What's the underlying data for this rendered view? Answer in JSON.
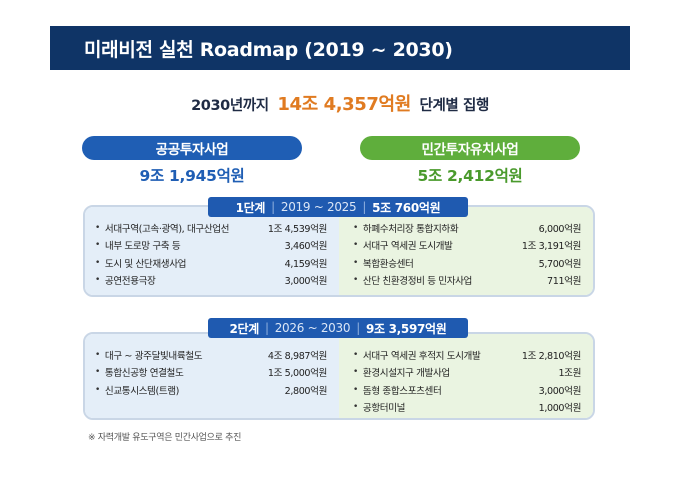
{
  "title": "미래비전 실천 Roadmap (2019 ~ 2030)",
  "total": {
    "prefix": "2030년까지",
    "amount": "14조 4,357억원",
    "suffix": "단계별 집행"
  },
  "public": {
    "label": "공공투자사업",
    "amount": "9조 1,945억원"
  },
  "private": {
    "label": "민간투자유치사업",
    "amount": "5조 2,412억원"
  },
  "stage1": {
    "name": "1단계",
    "period": "2019 ~ 2025",
    "amount": "5조 760억원",
    "public_items": [
      {
        "name": "서대구역(고속·광역), 대구산업선",
        "value": "1조 4,539억원"
      },
      {
        "name": "내부 도로망 구축 등",
        "value": "3,460억원"
      },
      {
        "name": "도시 및 산단재생사업",
        "value": "4,159억원"
      },
      {
        "name": "공연전용극장",
        "value": "3,000억원"
      }
    ],
    "private_items": [
      {
        "name": "하폐수처리장 통합지하화",
        "value": "6,000억원"
      },
      {
        "name": "서대구 역세권 도시개발",
        "value": "1조 3,191억원"
      },
      {
        "name": "복합환승센터",
        "value": "5,700억원"
      },
      {
        "name": "산단 친환경정비 등 민자사업",
        "value": "711억원"
      }
    ]
  },
  "stage2": {
    "name": "2단계",
    "period": "2026 ~ 2030",
    "amount": "9조 3,597억원",
    "public_items": [
      {
        "name": "대구 ~ 광주달빛내륙철도",
        "value": "4조 8,987억원"
      },
      {
        "name": "통합신공항 연결철도",
        "value": "1조 5,000억원"
      },
      {
        "name": "신교통시스템(트램)",
        "value": "2,800억원"
      }
    ],
    "private_items": [
      {
        "name": "서대구 역세권 후적지 도시개발",
        "value": "1조 2,810억원"
      },
      {
        "name": "환경시설지구 개발사업",
        "value": "1조원"
      },
      {
        "name": "돔형 종합스포츠센터",
        "value": "3,000억원"
      },
      {
        "name": "공항터미널",
        "value": "1,000억원"
      }
    ]
  },
  "footnote": "※ 자력개발 유도구역은 민간사업으로 추진",
  "colors": {
    "title_bg": "#0f3466",
    "accent_orange": "#e07b21",
    "public_blue": "#1f5eb4",
    "private_green": "#5fae3c",
    "stage_banner": "#1f5ab0"
  }
}
